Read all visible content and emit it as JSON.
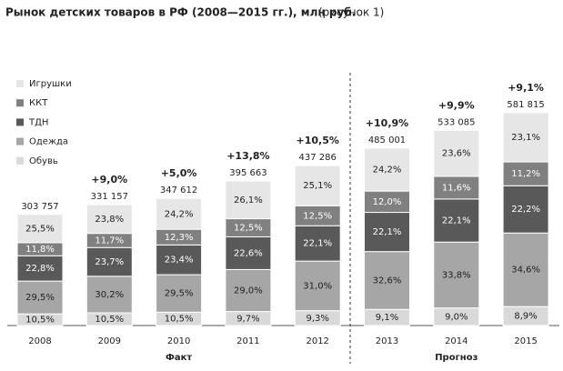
{
  "chart_data": {
    "type": "bar",
    "title": "Рынок детских товаров в РФ (2008—2015 гг.), млн руб.",
    "subtitle": "(рисунок 1)",
    "categories": [
      "2008",
      "2009",
      "2010",
      "2011",
      "2012",
      "2013",
      "2014",
      "2015"
    ],
    "groups": [
      {
        "name": "Факт",
        "count": 5
      },
      {
        "name": "Прогноз",
        "count": 3
      }
    ],
    "totals": [
      303757,
      331157,
      347612,
      395663,
      437286,
      485001,
      533085,
      581815
    ],
    "total_labels": [
      "303 757",
      "331 157",
      "347 612",
      "395 663",
      "437 286",
      "485 001",
      "533 085",
      "581 815"
    ],
    "growth": [
      null,
      9.0,
      5.0,
      13.8,
      10.5,
      10.9,
      9.9,
      9.1
    ],
    "growth_labels": [
      null,
      "+9,0%",
      "+5,0%",
      "+13,8%",
      "+10,5%",
      "+10,9%",
      "+9,9%",
      "+9,1%"
    ],
    "series": [
      {
        "name": "Обувь",
        "color": "#d9d9d9",
        "text_color": "#222222",
        "values": [
          10.5,
          10.5,
          10.5,
          9.7,
          9.3,
          9.1,
          9.0,
          8.9
        ],
        "value_labels": [
          "10,5%",
          "10,5%",
          "10,5%",
          "9,7%",
          "9,3%",
          "9,1%",
          "9,0%",
          "8,9%"
        ]
      },
      {
        "name": "Одежда",
        "color": "#a6a6a6",
        "text_color": "#222222",
        "values": [
          29.5,
          30.2,
          29.5,
          29.0,
          31.0,
          32.6,
          33.8,
          34.6
        ],
        "value_labels": [
          "29,5%",
          "30,2%",
          "29,5%",
          "29,0%",
          "31,0%",
          "32,6%",
          "33,8%",
          "34,6%"
        ]
      },
      {
        "name": "ТДН",
        "color": "#595959",
        "text_color": "#ffffff",
        "values": [
          22.8,
          23.7,
          23.4,
          22.6,
          22.1,
          22.1,
          22.1,
          22.2
        ],
        "value_labels": [
          "22,8%",
          "23,7%",
          "23,4%",
          "22,6%",
          "22,1%",
          "22,1%",
          "22,1%",
          "22,2%"
        ]
      },
      {
        "name": "ККТ",
        "color": "#808080",
        "text_color": "#ffffff",
        "values": [
          11.8,
          11.7,
          12.3,
          12.5,
          12.5,
          12.0,
          11.6,
          11.2
        ],
        "value_labels": [
          "11,8%",
          "11,7%",
          "12,3%",
          "12,5%",
          "12,5%",
          "12,0%",
          "11,6%",
          "11,2%"
        ]
      },
      {
        "name": "Игрушки",
        "color": "#e6e6e6",
        "text_color": "#222222",
        "values": [
          25.5,
          23.8,
          24.2,
          26.1,
          25.1,
          24.2,
          23.6,
          23.1
        ],
        "value_labels": [
          "25,5%",
          "23,8%",
          "24,2%",
          "26,1%",
          "25,1%",
          "24,2%",
          "23,6%",
          "23,1%"
        ]
      }
    ]
  }
}
